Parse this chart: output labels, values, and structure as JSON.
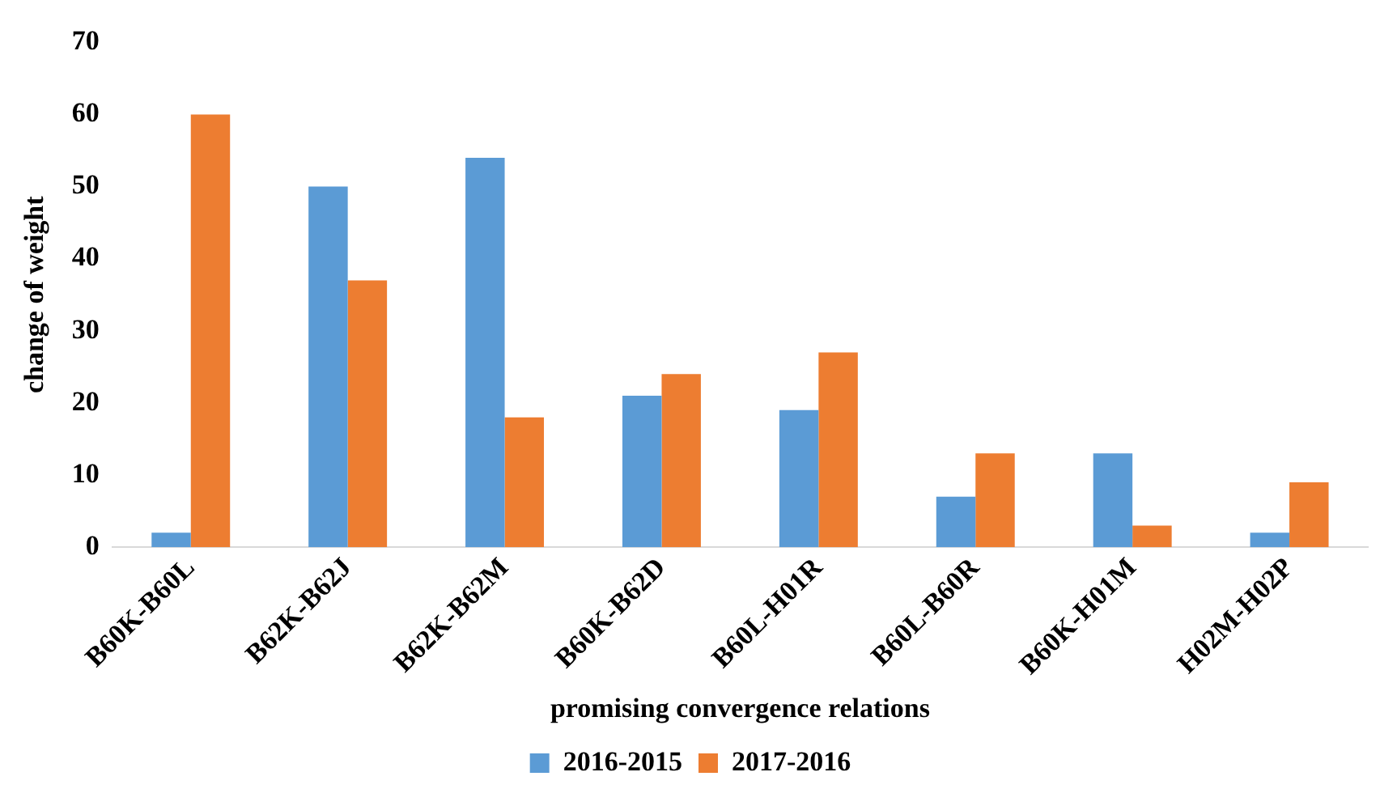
{
  "chart_data": {
    "type": "bar",
    "xlabel": "promising convergence relations",
    "ylabel": "change of weight",
    "categories": [
      "B60K-B60L",
      "B62K-B62J",
      "B62K-B62M",
      "B60K-B62D",
      "B60L-H01R",
      "B60L-B60R",
      "B60K-H01M",
      "H02M-H02P"
    ],
    "series": [
      {
        "name": "2016-2015",
        "color": "#5b9bd5",
        "values": [
          2,
          50,
          54,
          21,
          19,
          7,
          13,
          2
        ]
      },
      {
        "name": "2017-2016",
        "color": "#ed7d31",
        "values": [
          60,
          37,
          18,
          24,
          27,
          13,
          3,
          9
        ]
      }
    ],
    "ylim": [
      0,
      70
    ],
    "yticks": [
      0,
      10,
      20,
      30,
      40,
      50,
      60,
      70
    ],
    "grid": false,
    "legend": "bottom"
  }
}
